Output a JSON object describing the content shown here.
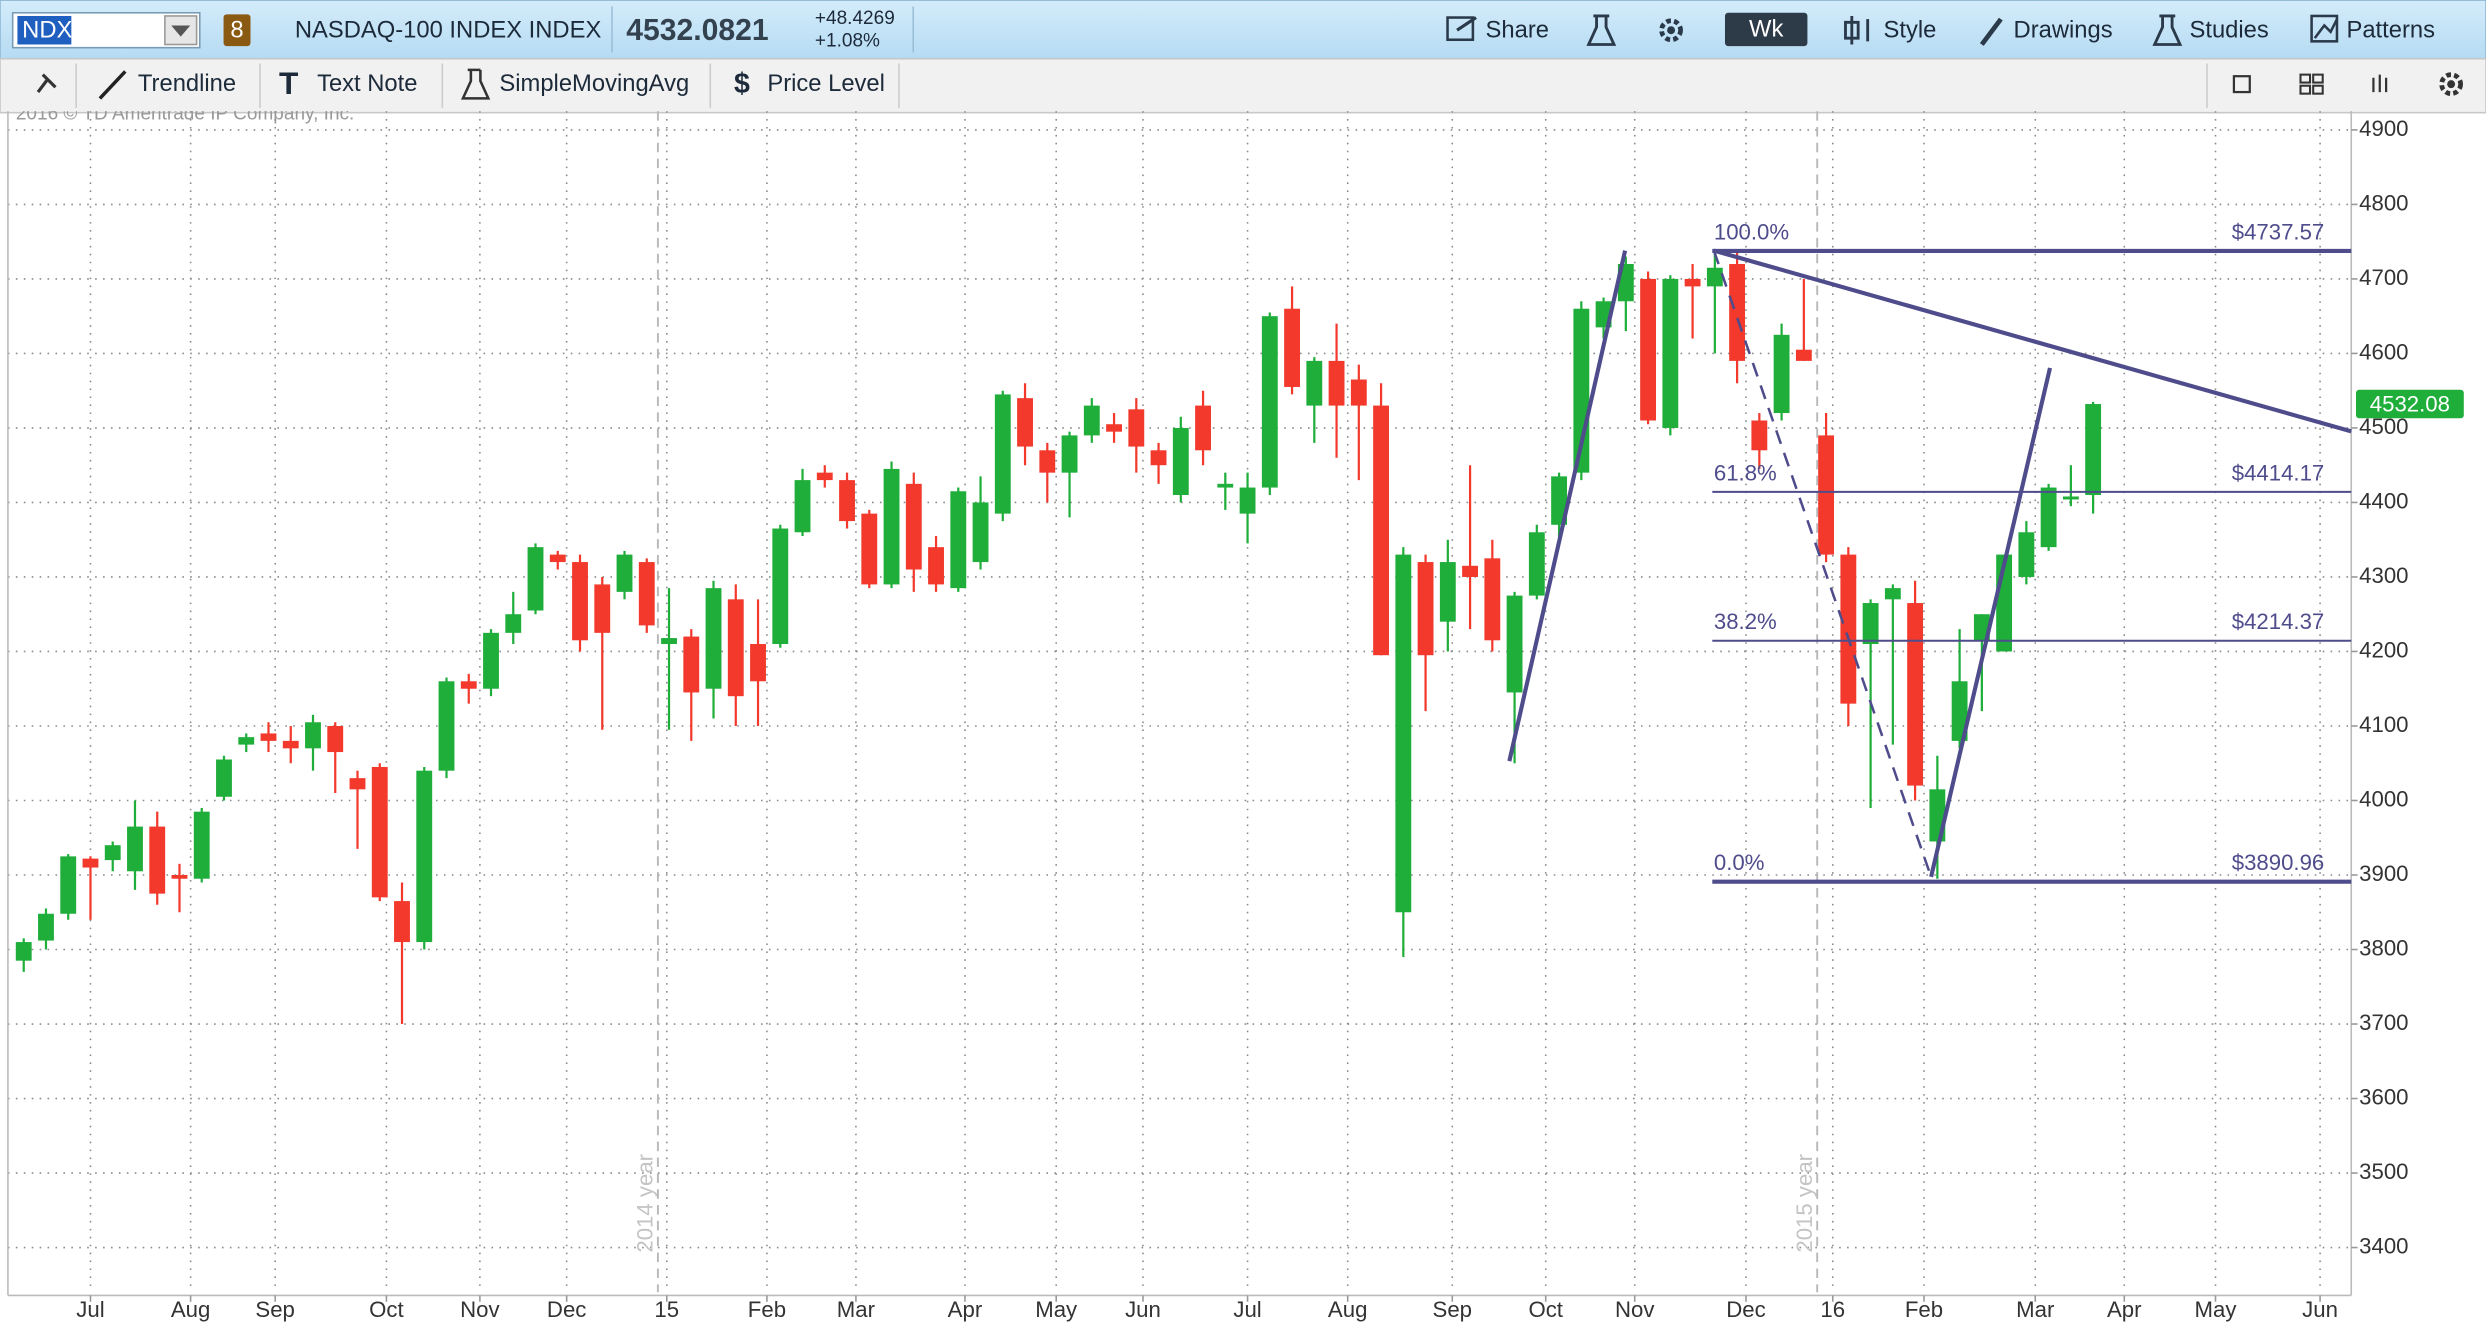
{
  "toolbar": {
    "symbol": "NDX",
    "badge": "8",
    "description": "NASDAQ-100 INDEX INDEX",
    "last": "4532.0821",
    "change": "+48.4269",
    "change_pct": "+1.08%",
    "share": "Share",
    "period": "Wk",
    "style": "Style",
    "drawings": "Drawings",
    "studies": "Studies",
    "patterns": "Patterns"
  },
  "drawing_tools": [
    "Trendline",
    "Text Note",
    "SimpleMovingAvg",
    "Price Level"
  ],
  "copyright": "2016 © TD Ameritrade IP Company, Inc.",
  "chart_data": {
    "type": "candlestick",
    "open": [
      3785,
      3812,
      3848,
      3922,
      3920,
      3905,
      3965,
      3900,
      3895,
      4005,
      4075,
      4090,
      4080,
      4070,
      4100,
      4030,
      4045,
      3865,
      3810,
      4040,
      4160,
      4150,
      4225,
      4255,
      4330,
      4320,
      4290,
      4280,
      4320,
      4210,
      4220,
      4150,
      4270,
      4210,
      4210,
      4360,
      4440,
      4430,
      4385,
      4290,
      4425,
      4340,
      4285,
      4320,
      4385,
      4540,
      4470,
      4440,
      4490,
      4505,
      4525,
      4470,
      4410,
      4530,
      4420,
      4385,
      4420,
      4660,
      4530,
      4590,
      4565,
      4530,
      3850,
      4320,
      4240,
      4315,
      4325,
      4145,
      4275,
      4370,
      4440,
      4635,
      4670,
      4700,
      4500,
      4700,
      4690,
      4720,
      4510,
      4520,
      4605,
      4490,
      4330,
      4210,
      4270,
      4265,
      3945,
      4080,
      4215,
      4200,
      4300,
      4340,
      4404,
      4410
    ],
    "high": [
      3815,
      3855,
      3928,
      3925,
      3945,
      4000,
      3985,
      3915,
      3990,
      4060,
      4090,
      4105,
      4100,
      4115,
      4105,
      4040,
      4050,
      3890,
      4045,
      4165,
      4170,
      4230,
      4280,
      4345,
      4335,
      4330,
      4300,
      4335,
      4325,
      4285,
      4230,
      4295,
      4290,
      4270,
      4370,
      4445,
      4450,
      4440,
      4390,
      4455,
      4440,
      4355,
      4420,
      4435,
      4550,
      4560,
      4480,
      4495,
      4540,
      4520,
      4540,
      4480,
      4515,
      4550,
      4440,
      4440,
      4655,
      4690,
      4595,
      4640,
      4585,
      4560,
      4340,
      4330,
      4350,
      4450,
      4350,
      4280,
      4370,
      4440,
      4670,
      4675,
      4730,
      4710,
      4705,
      4720,
      4740,
      4735,
      4520,
      4640,
      4700,
      4520,
      4340,
      4270,
      4290,
      4295,
      4060,
      4230,
      4250,
      4330,
      4375,
      4425,
      4450,
      4535
    ],
    "low": [
      3770,
      3800,
      3840,
      3840,
      3905,
      3880,
      3860,
      3850,
      3890,
      4000,
      4065,
      4065,
      4050,
      4040,
      4010,
      3935,
      3865,
      3700,
      3800,
      4030,
      4130,
      4140,
      4210,
      4250,
      4310,
      4200,
      4095,
      4270,
      4225,
      4095,
      4080,
      4110,
      4100,
      4100,
      4205,
      4355,
      4420,
      4365,
      4285,
      4285,
      4280,
      4280,
      4280,
      4310,
      4375,
      4450,
      4400,
      4380,
      4480,
      4480,
      4440,
      4425,
      4400,
      4450,
      4390,
      4345,
      4410,
      4545,
      4480,
      4460,
      4430,
      4195,
      3790,
      4120,
      4200,
      4230,
      4200,
      4050,
      4270,
      4350,
      4430,
      4620,
      4630,
      4505,
      4490,
      4620,
      4600,
      4560,
      4445,
      4510,
      4590,
      4320,
      4100,
      3990,
      4075,
      4000,
      3895,
      4070,
      4120,
      4200,
      4290,
      4335,
      4395,
      4385
    ],
    "close": [
      3810,
      3848,
      3925,
      3910,
      3940,
      3965,
      3875,
      3895,
      3985,
      4055,
      4085,
      4080,
      4070,
      4105,
      4065,
      4015,
      3870,
      3810,
      4040,
      4160,
      4150,
      4225,
      4250,
      4340,
      4320,
      4215,
      4225,
      4330,
      4235,
      4218,
      4145,
      4285,
      4140,
      4160,
      4365,
      4430,
      4430,
      4375,
      4290,
      4445,
      4310,
      4290,
      4415,
      4400,
      4545,
      4475,
      4440,
      4490,
      4530,
      4495,
      4475,
      4450,
      4500,
      4470,
      4425,
      4420,
      4650,
      4555,
      4590,
      4530,
      4530,
      4195,
      4330,
      4195,
      4320,
      4300,
      4215,
      4275,
      4360,
      4435,
      4660,
      4670,
      4720,
      4510,
      4700,
      4690,
      4715,
      4590,
      4470,
      4625,
      4590,
      4330,
      4130,
      4265,
      4285,
      4020,
      4015,
      4160,
      4250,
      4330,
      4360,
      4420,
      4408,
      4532.08
    ],
    "up_color": "#1fae3a",
    "down_color": "#f2392c",
    "xlim": [
      -0.71,
      104.6
    ],
    "xticks": [
      {
        "value": 3.0,
        "label": "Jul"
      },
      {
        "value": 7.5,
        "label": "Aug"
      },
      {
        "value": 11.3,
        "label": "Sep"
      },
      {
        "value": 16.3,
        "label": "Oct"
      },
      {
        "value": 20.5,
        "label": "Nov"
      },
      {
        "value": 24.4,
        "label": "Dec"
      },
      {
        "value": 28.9,
        "label": "15"
      },
      {
        "value": 33.4,
        "label": "Feb"
      },
      {
        "value": 37.4,
        "label": "Mar"
      },
      {
        "value": 42.3,
        "label": "Apr"
      },
      {
        "value": 46.4,
        "label": "May"
      },
      {
        "value": 50.3,
        "label": "Jun"
      },
      {
        "value": 55.0,
        "label": "Jul"
      },
      {
        "value": 59.5,
        "label": "Aug"
      },
      {
        "value": 64.2,
        "label": "Sep"
      },
      {
        "value": 68.4,
        "label": "Oct"
      },
      {
        "value": 72.4,
        "label": "Nov"
      },
      {
        "value": 77.4,
        "label": "Dec"
      },
      {
        "value": 81.3,
        "label": "16"
      },
      {
        "value": 85.4,
        "label": "Feb"
      },
      {
        "value": 90.4,
        "label": "Mar"
      },
      {
        "value": 94.4,
        "label": "Apr"
      },
      {
        "value": 98.5,
        "label": "May"
      },
      {
        "value": 103.2,
        "label": "Jun"
      }
    ],
    "year_lines": [
      {
        "value": 28.5,
        "label": "2014 year"
      },
      {
        "value": 80.6,
        "label": "2015 year"
      }
    ],
    "ylim": [
      3340,
      4921
    ],
    "yticks": [
      3400,
      3500,
      3600,
      3700,
      3800,
      3900,
      4000,
      4100,
      4200,
      4300,
      4400,
      4500,
      4600,
      4700,
      4800,
      4900
    ],
    "grid": true,
    "last_price": 4532.08,
    "fib_color": "#4f4c8c",
    "fib_levels": [
      {
        "label": "100.0%",
        "price": 4737.57,
        "price_label": "$4737.57"
      },
      {
        "label": "61.8%",
        "price": 4414.17,
        "price_label": "$4414.17"
      },
      {
        "label": "38.2%",
        "price": 4214.37,
        "price_label": "$4214.37"
      },
      {
        "label": "0.0%",
        "price": 3890.96,
        "price_label": "$3890.96"
      }
    ]
  }
}
